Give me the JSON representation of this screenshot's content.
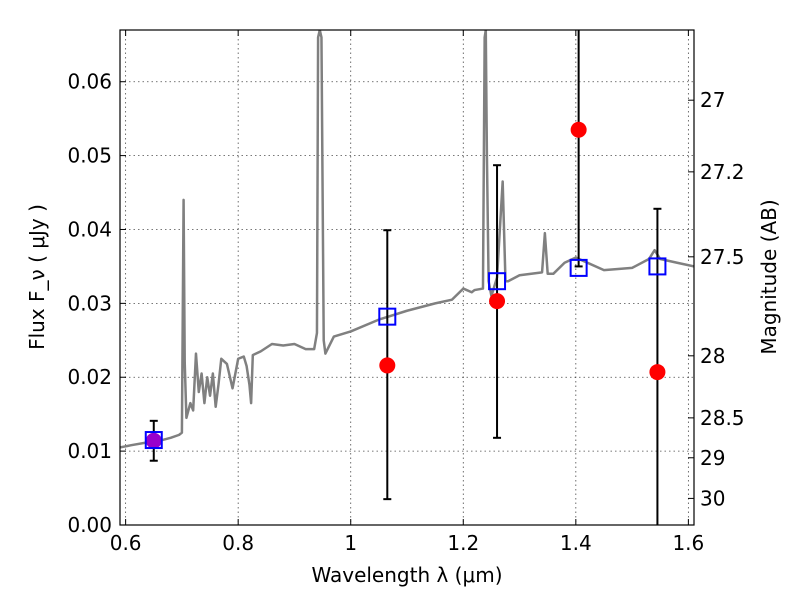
{
  "chart_data": {
    "type": "line",
    "xlabel": "Wavelength  λ (μm)",
    "ylabel": "Flux  F_ν  ( μJy )",
    "ylabel_right": "Magnitude (AB)",
    "xlim": [
      0.59,
      1.61
    ],
    "ylim": [
      0.0,
      0.067
    ],
    "x_ticks": [
      0.6,
      0.8,
      1.0,
      1.2,
      1.4,
      1.6
    ],
    "x_tick_labels": [
      "0.6",
      "0.8",
      "1",
      "1.2",
      "1.4",
      "1.6"
    ],
    "y_ticks": [
      0.0,
      0.01,
      0.02,
      0.03,
      0.04,
      0.05,
      0.06
    ],
    "y_tick_labels": [
      "0.00",
      "0.01",
      "0.02",
      "0.03",
      "0.04",
      "0.05",
      "0.06"
    ],
    "right_ticks": [
      {
        "label": "27",
        "flux": 0.0575
      },
      {
        "label": "27.2",
        "flux": 0.0478
      },
      {
        "label": "27.5",
        "flux": 0.0363
      },
      {
        "label": "28",
        "flux": 0.0229
      },
      {
        "label": "28.5",
        "flux": 0.0145
      },
      {
        "label": "29",
        "flux": 0.0091
      },
      {
        "label": "30",
        "flux": 0.0036
      }
    ],
    "grid": true,
    "colors": {
      "spectrum": "#808080",
      "model_box": "#0000ff",
      "observed": "#ff0000",
      "observed_first": "#9900cc",
      "error_bar": "#000000"
    },
    "series": [
      {
        "style": "spectrum line",
        "x": [
          0.59,
          0.61,
          0.64,
          0.66,
          0.68,
          0.695,
          0.7,
          0.703,
          0.705,
          0.708,
          0.715,
          0.72,
          0.725,
          0.73,
          0.735,
          0.74,
          0.745,
          0.75,
          0.755,
          0.76,
          0.765,
          0.77,
          0.78,
          0.79,
          0.8,
          0.81,
          0.815,
          0.82,
          0.823,
          0.826,
          0.84,
          0.86,
          0.88,
          0.9,
          0.92,
          0.935,
          0.94,
          0.942,
          0.945,
          0.948,
          0.952,
          0.955,
          0.97,
          1.0,
          1.05,
          1.1,
          1.15,
          1.18,
          1.2,
          1.215,
          1.22,
          1.235,
          1.238,
          1.24,
          1.242,
          1.245,
          1.25,
          1.26,
          1.27,
          1.275,
          1.28,
          1.3,
          1.34,
          1.345,
          1.35,
          1.36,
          1.38,
          1.4,
          1.45,
          1.5,
          1.53,
          1.54,
          1.55,
          1.58,
          1.61
        ],
        "y": [
          0.0105,
          0.0108,
          0.0112,
          0.0114,
          0.0118,
          0.0122,
          0.0125,
          0.044,
          0.022,
          0.0145,
          0.0165,
          0.0155,
          0.0232,
          0.018,
          0.0205,
          0.0165,
          0.02,
          0.0175,
          0.0205,
          0.016,
          0.019,
          0.0225,
          0.0218,
          0.0185,
          0.0225,
          0.0228,
          0.0215,
          0.019,
          0.0165,
          0.023,
          0.0235,
          0.0245,
          0.0243,
          0.0245,
          0.0238,
          0.0238,
          0.026,
          0.066,
          0.067,
          0.066,
          0.025,
          0.0232,
          0.0255,
          0.0262,
          0.0278,
          0.029,
          0.03,
          0.0305,
          0.032,
          0.0315,
          0.0318,
          0.032,
          0.066,
          0.067,
          0.05,
          0.033,
          0.031,
          0.0335,
          0.0465,
          0.033,
          0.033,
          0.0338,
          0.0342,
          0.0395,
          0.034,
          0.034,
          0.0355,
          0.0362,
          0.0345,
          0.0348,
          0.036,
          0.0372,
          0.036,
          0.0355,
          0.035
        ]
      },
      {
        "style": "blue squares",
        "x": [
          0.65,
          1.065,
          1.26,
          1.405,
          1.545
        ],
        "y": [
          0.0115,
          0.0282,
          0.033,
          0.0348,
          0.035
        ]
      },
      {
        "style": "red points with error bars",
        "x": [
          0.65,
          1.065,
          1.26,
          1.405,
          1.545
        ],
        "y": [
          0.0114,
          0.0216,
          0.0303,
          0.0535,
          0.0207
        ],
        "yerr_low": [
          0.0027,
          0.0181,
          0.0185,
          0.0185,
          0.021
        ],
        "yerr_high": [
          0.0027,
          0.0183,
          0.0184,
          0.014,
          0.0221
        ]
      }
    ]
  }
}
